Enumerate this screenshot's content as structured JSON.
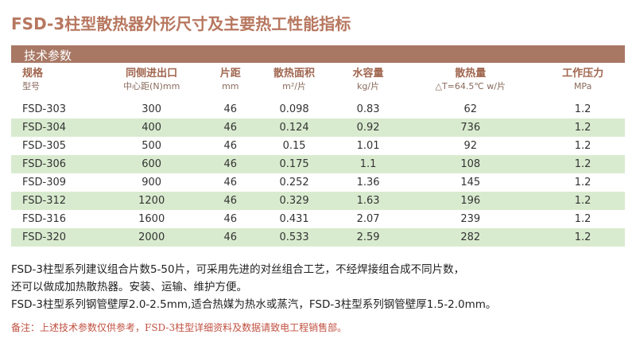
{
  "title": "FSD-3柱型散热器外形尺寸及主要热工性能指标",
  "section": "技术参数",
  "table": {
    "header": [
      [
        "规格",
        "型号"
      ],
      [
        "同侧进出口",
        "中心距(N)mm"
      ],
      [
        "片距",
        "mm"
      ],
      [
        "散热面积",
        "m²/片"
      ],
      [
        "水容量",
        "kg/片"
      ],
      [
        "散热量",
        "△T=64.5℃ w/片"
      ],
      [
        "工作压力",
        "MPa"
      ]
    ],
    "rows": [
      [
        "FSD-303",
        "300",
        "46",
        "0.098",
        "0.83",
        "62",
        "1.2"
      ],
      [
        "FSD-304",
        "400",
        "46",
        "0.124",
        "0.92",
        "736",
        "1.2"
      ],
      [
        "FSD-305",
        "500",
        "46",
        "0.15",
        "1.01",
        "92",
        "1.2"
      ],
      [
        "FSD-306",
        "600",
        "46",
        "0.175",
        "1.1",
        "108",
        "1.2"
      ],
      [
        "FSD-309",
        "900",
        "46",
        "0.252",
        "1.36",
        "145",
        "1.2"
      ],
      [
        "FSD-312",
        "1200",
        "46",
        "0.329",
        "1.63",
        "196",
        "1.2"
      ],
      [
        "FSD-316",
        "1600",
        "46",
        "0.431",
        "2.07",
        "239",
        "1.2"
      ],
      [
        "FSD-320",
        "2000",
        "46",
        "0.533",
        "2.59",
        "282",
        "1.2"
      ]
    ]
  },
  "notes": [
    "FSD-3柱型系列建议组合片数5-50片，可采用先进的对丝组合工艺，不经焊接组合成不同片数，",
    "还可以做成加热散热器。安装、运输、维护方便。",
    "FSD-3柱型系列钢管壁厚2.0-2.5mm,适合热媒为热水或蒸汽，FSD-3柱型系列钢管壁厚1.5-2.0mm。"
  ],
  "remark": "备注：上述技术参数仅供参考，FSD-3柱型详细资料及数据请致电工程销售部。"
}
